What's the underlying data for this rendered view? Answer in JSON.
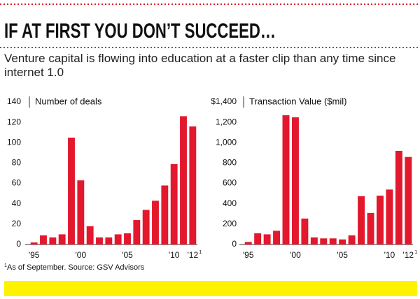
{
  "header": {
    "title": "IF AT FIRST YOU DON’T SUCCEED…",
    "subtitle": "Venture capital is flowing into education at a faster clip than any time since internet 1.0"
  },
  "footnote": {
    "marker": "1",
    "text": "As of September. Source: GSV Advisors"
  },
  "chart_data": [
    {
      "type": "bar",
      "title": "Number of deals",
      "color": "#e3182d",
      "categories": [
        "'95",
        null,
        null,
        null,
        null,
        "'00",
        null,
        null,
        null,
        null,
        "'05",
        null,
        null,
        null,
        null,
        "'10",
        null,
        "'12"
      ],
      "values": [
        2,
        9,
        7,
        10,
        105,
        63,
        18,
        7,
        7,
        10,
        11,
        24,
        34,
        43,
        58,
        79,
        126,
        116
      ],
      "ylim": [
        0,
        140
      ],
      "yticks": [
        0,
        20,
        40,
        60,
        80,
        100,
        120,
        140
      ],
      "grid": false
    },
    {
      "type": "bar",
      "title": "Transaction Value ($mil)",
      "color": "#e3182d",
      "categories": [
        "'95",
        null,
        null,
        null,
        null,
        "'00",
        null,
        null,
        null,
        null,
        "'05",
        null,
        null,
        null,
        null,
        "'10",
        null,
        "'12"
      ],
      "values": [
        25,
        110,
        100,
        135,
        1270,
        1250,
        255,
        70,
        60,
        60,
        50,
        90,
        475,
        310,
        480,
        540,
        920,
        860
      ],
      "ylim": [
        0,
        1400
      ],
      "yticks": [
        0,
        200,
        400,
        600,
        800,
        {
          "value": 1000,
          "label": "1,000"
        },
        {
          "value": 1200,
          "label": "1,200"
        },
        {
          "value": 1400,
          "label": "$1,400"
        }
      ],
      "grid": false
    }
  ]
}
